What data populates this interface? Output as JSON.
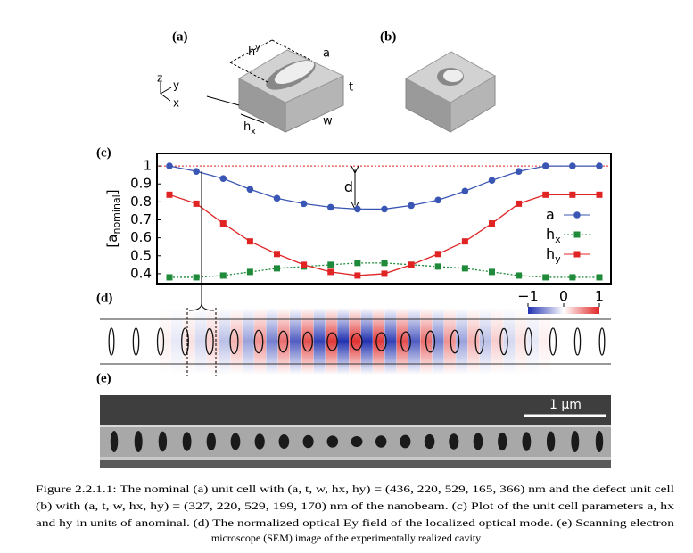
{
  "panels": {
    "a": "(a)",
    "b": "(b)",
    "c": "(c)",
    "d": "(d)",
    "e": "(e)"
  },
  "cell_labels": {
    "a": "a",
    "t": "t",
    "w": "w",
    "hy_main": "h",
    "hy_sub": "y",
    "hx_main": "h",
    "hx_sub": "x",
    "axis_z": "z",
    "axis_y": "y",
    "axis_x": "x"
  },
  "chart_data": {
    "type": "line",
    "ylabel_main": "[a",
    "ylabel_sub": "nominal",
    "ylabel_end": "]",
    "categories": [
      null,
      null,
      null,
      null,
      null,
      null,
      null,
      null,
      null,
      null,
      null,
      null,
      null,
      null,
      null,
      null,
      null
    ],
    "series": [
      {
        "name": "a",
        "color": "#3a56b4",
        "marker": "circle",
        "dash": false,
        "values": [
          1.0,
          0.97,
          0.93,
          0.87,
          0.82,
          0.79,
          0.77,
          0.76,
          0.76,
          0.78,
          0.81,
          0.86,
          0.92,
          0.97,
          1.0,
          1.0,
          1.0
        ]
      },
      {
        "name": "h",
        "name_sub": "x",
        "color": "#1f8a3a",
        "marker": "square",
        "dash": true,
        "values": [
          0.38,
          0.38,
          0.39,
          0.41,
          0.43,
          0.44,
          0.45,
          0.46,
          0.46,
          0.45,
          0.44,
          0.43,
          0.41,
          0.39,
          0.38,
          0.38,
          0.38
        ]
      },
      {
        "name": "h",
        "name_sub": "y",
        "color": "#e02424",
        "marker": "square",
        "dash": false,
        "values": [
          0.84,
          0.79,
          0.68,
          0.58,
          0.51,
          0.45,
          0.41,
          0.39,
          0.4,
          0.45,
          0.51,
          0.58,
          0.68,
          0.79,
          0.84,
          0.84,
          0.84
        ]
      }
    ],
    "hline": 1,
    "hline_color": "#e02424",
    "annotation": "d",
    "ylim": [
      0.345,
      1.07
    ],
    "yticks": [
      0.4,
      0.5,
      0.6,
      0.7,
      0.8,
      0.9,
      1
    ]
  },
  "colorbar": {
    "ticks": [
      {
        "value": -1,
        "label": "−1"
      },
      0,
      1
    ],
    "lim": [
      -1,
      1
    ]
  },
  "scale_bar": "1 µm",
  "caption": {
    "lines": [
      "Figure 2.2.1.1: The nominal (a) unit cell with (a, t, w, hx, hy) = (436, 220, 529, 165, 366) nm and the defect unit cell",
      "(b) with (a, t, w, hx, hy) = (327, 220, 529, 199, 170) nm of the nanobeam. (c) Plot of the unit cell parameters a, hx",
      "and hy in units of anominal. (d) The normalized optical Ey field of the localized optical mode. (e) Scanning electron",
      "microscope (SEM) image of the experimentally realized cavity"
    ]
  }
}
